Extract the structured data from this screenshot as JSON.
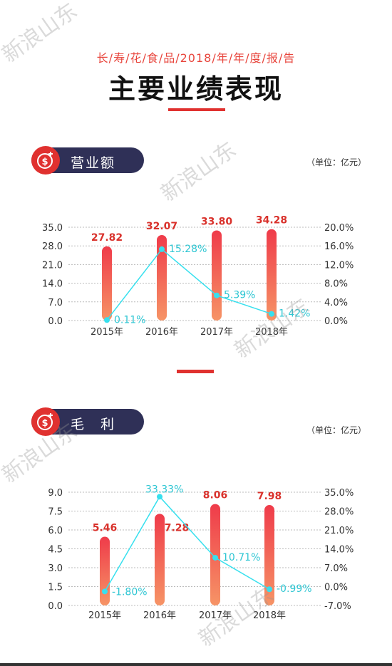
{
  "header": {
    "subtitle": "长/寿/花/食/品/2018/年/年/度/报/告",
    "title": "主要业绩表现"
  },
  "sections": [
    {
      "label": "营业额",
      "unit": "（单位：亿元）",
      "icon": "dollar-icon"
    },
    {
      "label": "毛　利",
      "unit": "（单位：亿元）",
      "icon": "dollar-icon"
    }
  ],
  "watermark": "新浪山东",
  "colors": {
    "accent": "#e0312f",
    "bar_top": "#ef3b4a",
    "bar_bottom": "#f69466",
    "line": "#37e0ee",
    "line_label": "#2ec6d3",
    "value_label": "#d9322c",
    "badge": "#2f3057"
  },
  "chart_data": [
    {
      "type": "bar",
      "title": "营业额",
      "categories": [
        "2015年",
        "2016年",
        "2017年",
        "2018年"
      ],
      "series": [
        {
          "values": [
            27.82,
            32.07,
            33.8,
            34.28
          ],
          "labels": [
            "27.82",
            "32.07",
            "33.80",
            "34.28"
          ]
        },
        {
          "type": "line",
          "values": [
            0.11,
            15.28,
            5.39,
            1.42
          ],
          "labels": [
            "0.11%",
            "15.28%",
            "5.39%",
            "1.42%"
          ]
        }
      ],
      "ylim": [
        0,
        35
      ],
      "yticks": [
        "35.0",
        "28.0",
        "21.0",
        "14.0",
        "7.0",
        "0.0"
      ],
      "y2lim": [
        0,
        20
      ],
      "y2ticks": [
        "20.0%",
        "16.0%",
        "12.0%",
        "8.0%",
        "4.0%",
        "0.0%"
      ],
      "grid": true
    },
    {
      "type": "bar",
      "title": "毛利",
      "categories": [
        "2015年",
        "2016年",
        "2017年",
        "2018年"
      ],
      "series": [
        {
          "values": [
            5.46,
            7.28,
            8.06,
            7.98
          ],
          "labels": [
            "5.46",
            "7.28",
            "8.06",
            "7.98"
          ]
        },
        {
          "type": "line",
          "values": [
            -1.8,
            33.33,
            10.71,
            -0.99
          ],
          "labels": [
            "-1.80%",
            "33.33%",
            "10.71%",
            "-0.99%"
          ]
        }
      ],
      "ylim": [
        0,
        9
      ],
      "yticks": [
        "9.0",
        "7.5",
        "6.0",
        "4.5",
        "3.0",
        "1.5",
        "0.0"
      ],
      "y2lim": [
        -7,
        35
      ],
      "y2ticks": [
        "35.0%",
        "28.0%",
        "21.0%",
        "14.0%",
        "7.0%",
        "0.0%",
        "-7.0%"
      ],
      "grid": true
    }
  ]
}
